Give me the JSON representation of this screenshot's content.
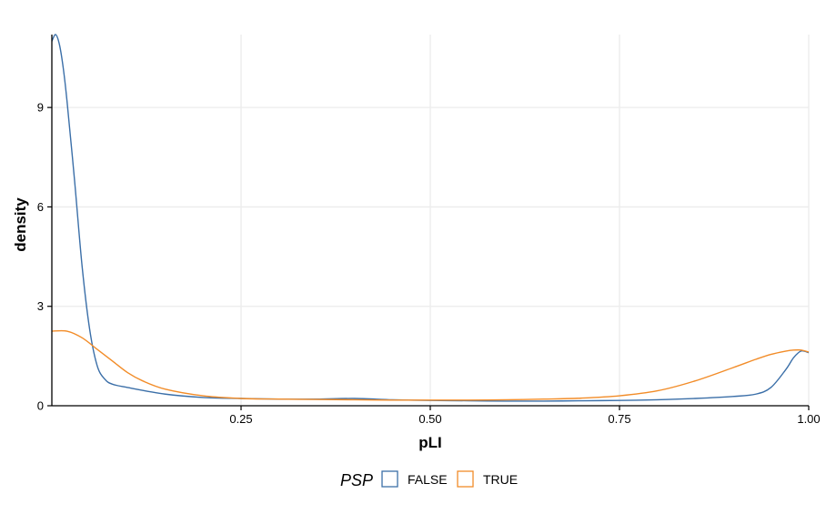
{
  "chart_data": {
    "type": "line",
    "subtype": "density",
    "title": "",
    "xlabel": "pLI",
    "ylabel": "density",
    "xlim": [
      0,
      1
    ],
    "ylim": [
      0,
      11.2
    ],
    "x_ticks": [
      0.25,
      0.5,
      0.75,
      1.0
    ],
    "x_tick_labels": [
      "0.25",
      "0.50",
      "0.75",
      "1.00"
    ],
    "y_ticks": [
      0,
      3,
      6,
      9
    ],
    "y_tick_labels": [
      "0",
      "3",
      "6",
      "9"
    ],
    "grid": true,
    "legend": {
      "title": "PSP",
      "position": "bottom"
    },
    "series": [
      {
        "name": "FALSE",
        "color": "#3b6fa8",
        "x": [
          0.0,
          0.005,
          0.01,
          0.015,
          0.02,
          0.03,
          0.04,
          0.05,
          0.06,
          0.07,
          0.08,
          0.1,
          0.15,
          0.2,
          0.25,
          0.3,
          0.35,
          0.4,
          0.45,
          0.5,
          0.55,
          0.6,
          0.65,
          0.7,
          0.75,
          0.8,
          0.85,
          0.9,
          0.93,
          0.95,
          0.97,
          0.98,
          0.99,
          1.0
        ],
        "y": [
          11.0,
          11.2,
          10.9,
          10.2,
          9.2,
          6.8,
          4.2,
          2.3,
          1.2,
          0.8,
          0.65,
          0.55,
          0.35,
          0.25,
          0.22,
          0.2,
          0.2,
          0.22,
          0.18,
          0.16,
          0.15,
          0.14,
          0.14,
          0.15,
          0.16,
          0.18,
          0.22,
          0.28,
          0.35,
          0.55,
          1.1,
          1.45,
          1.65,
          1.6
        ]
      },
      {
        "name": "TRUE",
        "color": "#f28c28",
        "x": [
          0.0,
          0.02,
          0.04,
          0.06,
          0.08,
          0.1,
          0.12,
          0.15,
          0.2,
          0.25,
          0.3,
          0.35,
          0.4,
          0.45,
          0.5,
          0.55,
          0.6,
          0.65,
          0.7,
          0.75,
          0.8,
          0.85,
          0.9,
          0.93,
          0.95,
          0.97,
          0.98,
          0.99,
          1.0
        ],
        "y": [
          2.25,
          2.25,
          2.05,
          1.7,
          1.35,
          1.0,
          0.75,
          0.5,
          0.3,
          0.22,
          0.2,
          0.19,
          0.18,
          0.17,
          0.17,
          0.17,
          0.18,
          0.2,
          0.23,
          0.3,
          0.45,
          0.75,
          1.15,
          1.4,
          1.55,
          1.65,
          1.68,
          1.68,
          1.62
        ]
      }
    ]
  }
}
